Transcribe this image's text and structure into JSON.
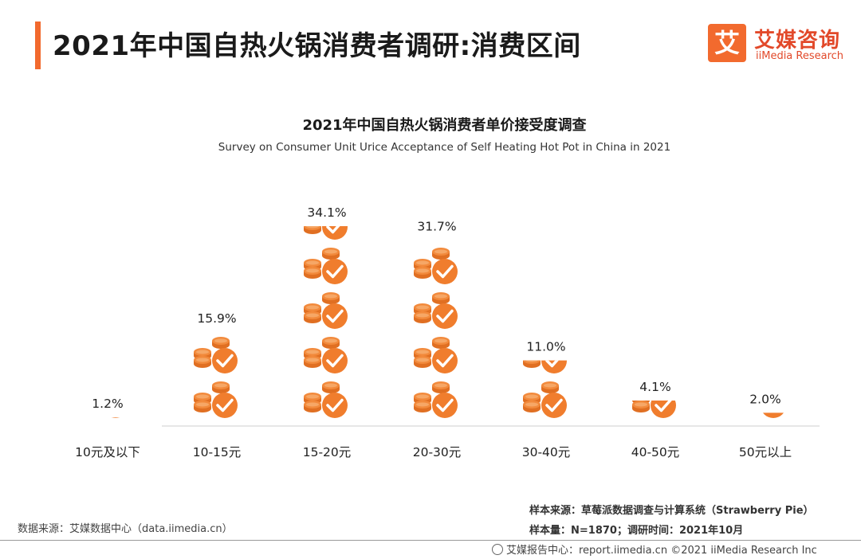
{
  "header": {
    "title": "2021年中国自热火锅消费者调研:消费区间",
    "logo_mark": "艾",
    "logo_cn": "艾媒咨询",
    "logo_en": "iiMedia Research"
  },
  "chart_data": {
    "type": "bar",
    "title": "2021年中国自热火锅消费者单价接受度调查",
    "subtitle": "Survey on Consumer Unit Urice Acceptance of Self Heating Hot Pot in China in 2021",
    "categories": [
      "10元及以下",
      "10-15元",
      "15-20元",
      "20-30元",
      "30-40元",
      "40-50元",
      "50元以上"
    ],
    "values": [
      1.2,
      15.9,
      34.1,
      31.7,
      11.0,
      4.1,
      2.0
    ],
    "value_labels": [
      "1.2%",
      "15.9%",
      "34.1%",
      "31.7%",
      "11.0%",
      "4.1%",
      "2.0%"
    ],
    "unit": "%",
    "ylim": [
      0,
      34.1
    ],
    "colors": {
      "bar": "#f07d2d",
      "coin": "#f28a3c",
      "coin_dark": "#e06f22",
      "check": "#ffffff"
    }
  },
  "footer": {
    "data_source": "数据来源：艾媒数据中心（data.iimedia.cn）",
    "sample_source": "样本来源：草莓派数据调查与计算系统（Strawberry Pie）",
    "sample_size": "样本量：N=1870；调研时间：2021年10月",
    "report": "艾媒报告中心：report.iimedia.cn   ©2021  iiMedia Research  Inc"
  }
}
